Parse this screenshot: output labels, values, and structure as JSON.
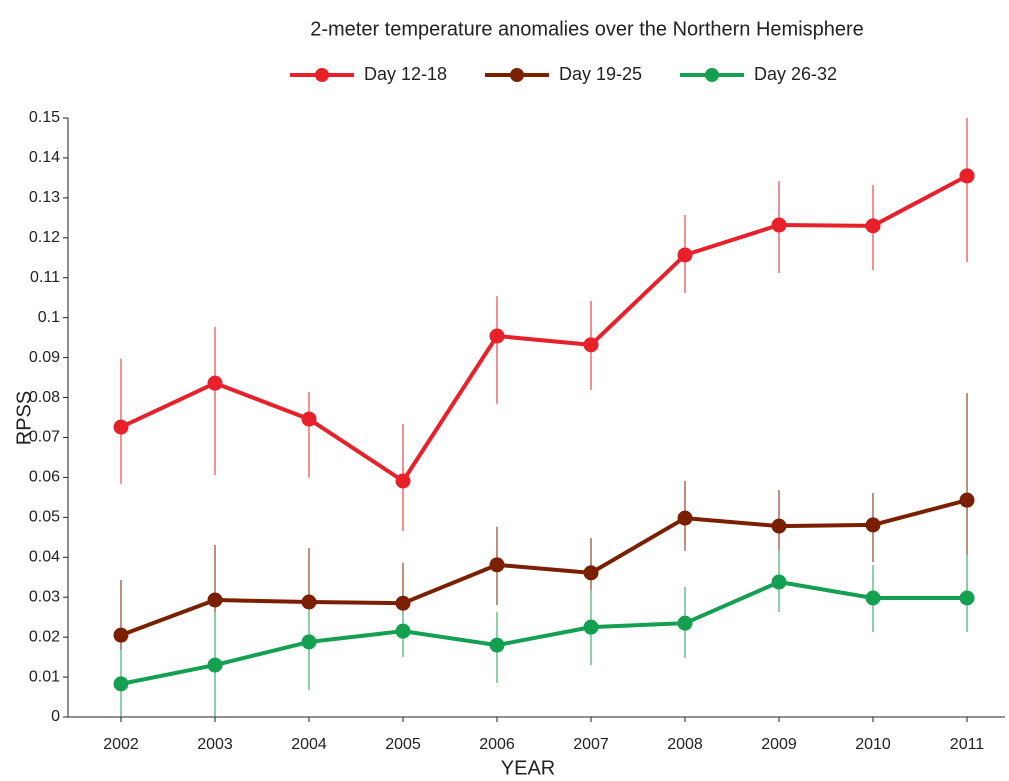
{
  "chart_data": {
    "type": "line",
    "title": "2-meter temperature anomalies over the Northern Hemisphere",
    "x_label": "YEAR",
    "y_label": "RPSS",
    "categories": [
      "2002",
      "2003",
      "2004",
      "2005",
      "2006",
      "2007",
      "2008",
      "2009",
      "2010",
      "2011"
    ],
    "ylim": [
      0,
      0.15
    ],
    "yticks": [
      0,
      0.01,
      0.02,
      0.03,
      0.04,
      0.05,
      0.06,
      0.07,
      0.08,
      0.09,
      0.1,
      0.11,
      0.12,
      0.13,
      0.14,
      0.15
    ],
    "series": [
      {
        "name": "Day 12-18",
        "color": "#e8202a",
        "values": [
          0.0726,
          0.0836,
          0.0746,
          0.0591,
          0.0954,
          0.0932,
          0.1157,
          0.1232,
          0.123,
          0.1355
        ],
        "lower": [
          0.0584,
          0.0606,
          0.0599,
          0.0466,
          0.0784,
          0.0819,
          0.1062,
          0.1112,
          0.1119,
          0.1139
        ],
        "upper": [
          0.0897,
          0.0977,
          0.0814,
          0.0734,
          0.1054,
          0.1042,
          0.1257,
          0.1342,
          0.1332,
          0.15
        ]
      },
      {
        "name": "Day 19-25",
        "color": "#7a2000",
        "values": [
          0.0205,
          0.0293,
          0.0288,
          0.0285,
          0.0381,
          0.0361,
          0.0498,
          0.0478,
          0.0481,
          0.0543
        ],
        "lower": [
          0.007,
          0.0153,
          0.0143,
          0.0213,
          0.028,
          0.0268,
          0.0416,
          0.0386,
          0.0388,
          0.0328
        ],
        "upper": [
          0.0343,
          0.0431,
          0.0423,
          0.0386,
          0.0476,
          0.0448,
          0.0591,
          0.0568,
          0.0561,
          0.0811
        ]
      },
      {
        "name": "Day 26-32",
        "color": "#14a050",
        "values": [
          0.0083,
          0.013,
          0.0188,
          0.0215,
          0.018,
          0.0225,
          0.0235,
          0.0338,
          0.0298,
          0.0298
        ],
        "lower": [
          0,
          0,
          0.0068,
          0.015,
          0.0085,
          0.013,
          0.0148,
          0.0263,
          0.0213,
          0.0213
        ],
        "upper": [
          0.0168,
          0.0263,
          0.0306,
          0.028,
          0.0263,
          0.0318,
          0.0326,
          0.0418,
          0.0381,
          0.0406
        ]
      }
    ]
  }
}
